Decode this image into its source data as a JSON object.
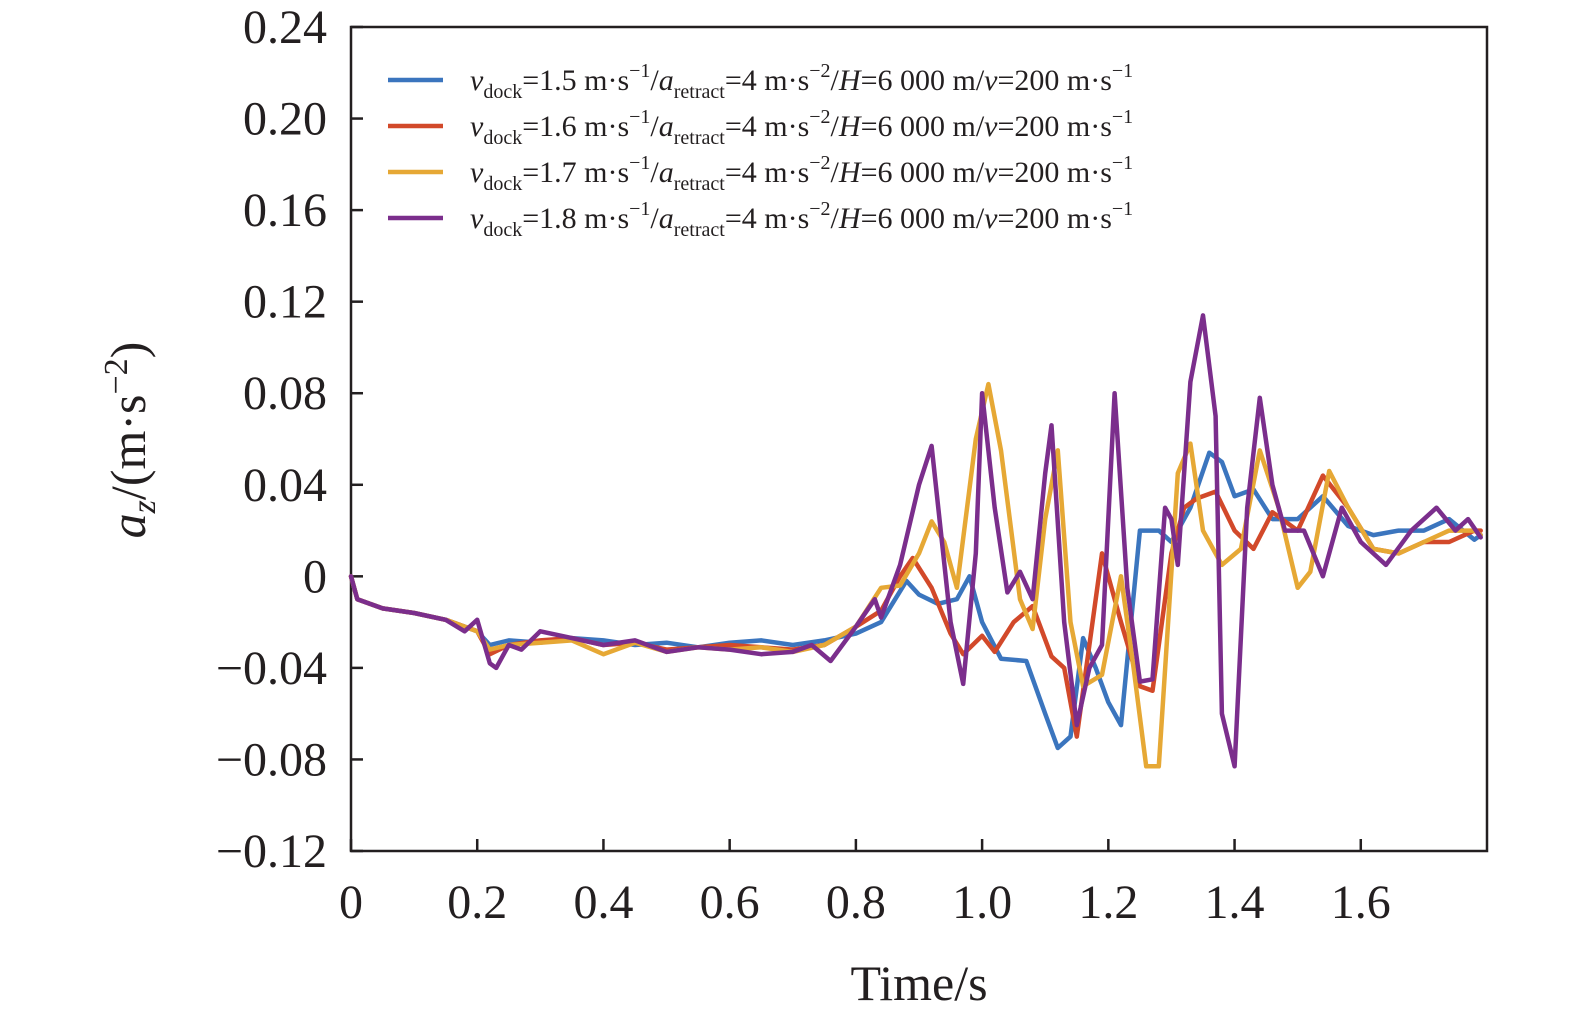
{
  "chart_data": {
    "type": "line",
    "xlabel": "Time/s",
    "ylabel": {
      "var": "a",
      "sub": "z",
      "unit": "/(m·s",
      "sup": "−2",
      "close": ")"
    },
    "xlim": [
      0,
      1.8
    ],
    "ylim": [
      -0.12,
      0.24
    ],
    "xticks": [
      0,
      0.2,
      0.4,
      0.6,
      0.8,
      1.0,
      1.2,
      1.4,
      1.6
    ],
    "xtick_labels": [
      "0",
      "0.2",
      "0.4",
      "0.6",
      "0.8",
      "1.0",
      "1.2",
      "1.4",
      "1.6"
    ],
    "yticks": [
      -0.12,
      -0.08,
      -0.04,
      0,
      0.04,
      0.08,
      0.12,
      0.16,
      0.2,
      0.24
    ],
    "ytick_labels": [
      "−0.12",
      "−0.08",
      "−0.04",
      "0",
      "0.04",
      "0.08",
      "0.12",
      "0.16",
      "0.20",
      "0.24"
    ],
    "grid": false,
    "legend_position": "top-left",
    "series": [
      {
        "name": "vdock=1.5 m·s−1/aretract=4 m·s−2/H=6 000 m/v=200 m·s−1",
        "legend": {
          "vdock": "1.5"
        },
        "color": "#3b75be",
        "x": [
          0,
          0.01,
          0.05,
          0.1,
          0.15,
          0.2,
          0.22,
          0.25,
          0.3,
          0.35,
          0.4,
          0.45,
          0.5,
          0.55,
          0.6,
          0.65,
          0.7,
          0.75,
          0.8,
          0.84,
          0.88,
          0.9,
          0.93,
          0.96,
          0.98,
          1.0,
          1.03,
          1.07,
          1.1,
          1.12,
          1.14,
          1.16,
          1.18,
          1.2,
          1.22,
          1.25,
          1.28,
          1.3,
          1.33,
          1.36,
          1.38,
          1.4,
          1.43,
          1.46,
          1.5,
          1.54,
          1.58,
          1.62,
          1.66,
          1.7,
          1.74,
          1.78,
          1.79
        ],
        "y": [
          0,
          -0.01,
          -0.014,
          -0.016,
          -0.019,
          -0.024,
          -0.03,
          -0.028,
          -0.029,
          -0.027,
          -0.028,
          -0.03,
          -0.029,
          -0.031,
          -0.029,
          -0.028,
          -0.03,
          -0.028,
          -0.025,
          -0.02,
          -0.002,
          -0.008,
          -0.012,
          -0.01,
          0,
          -0.02,
          -0.036,
          -0.037,
          -0.06,
          -0.075,
          -0.07,
          -0.027,
          -0.04,
          -0.055,
          -0.065,
          0.02,
          0.02,
          0.015,
          0.03,
          0.054,
          0.05,
          0.035,
          0.038,
          0.025,
          0.025,
          0.035,
          0.022,
          0.018,
          0.02,
          0.02,
          0.025,
          0.016,
          0.018
        ]
      },
      {
        "name": "vdock=1.6 m·s−1/aretract=4 m·s−2/H=6 000 m/v=200 m·s−1",
        "legend": {
          "vdock": "1.6"
        },
        "color": "#d2492a",
        "x": [
          0,
          0.01,
          0.05,
          0.1,
          0.15,
          0.2,
          0.22,
          0.25,
          0.3,
          0.35,
          0.4,
          0.45,
          0.5,
          0.55,
          0.6,
          0.65,
          0.7,
          0.75,
          0.8,
          0.84,
          0.87,
          0.89,
          0.92,
          0.95,
          0.97,
          1.0,
          1.02,
          1.05,
          1.08,
          1.11,
          1.13,
          1.15,
          1.17,
          1.19,
          1.2,
          1.22,
          1.25,
          1.27,
          1.3,
          1.32,
          1.34,
          1.37,
          1.4,
          1.43,
          1.46,
          1.5,
          1.54,
          1.58,
          1.62,
          1.66,
          1.7,
          1.74,
          1.78,
          1.79
        ],
        "y": [
          0,
          -0.01,
          -0.014,
          -0.016,
          -0.019,
          -0.024,
          -0.034,
          -0.03,
          -0.028,
          -0.027,
          -0.03,
          -0.029,
          -0.032,
          -0.031,
          -0.03,
          -0.031,
          -0.032,
          -0.03,
          -0.022,
          -0.015,
          0,
          0.008,
          -0.005,
          -0.025,
          -0.034,
          -0.026,
          -0.033,
          -0.02,
          -0.013,
          -0.035,
          -0.04,
          -0.07,
          -0.03,
          0.01,
          0.0,
          -0.02,
          -0.048,
          -0.05,
          0.01,
          0.03,
          0.034,
          0.037,
          0.02,
          0.012,
          0.028,
          0.02,
          0.044,
          0.03,
          0.012,
          0.01,
          0.015,
          0.015,
          0.02,
          0.02
        ]
      },
      {
        "name": "vdock=1.7 m·s−1/aretract=4 m·s−2/H=6 000 m/v=200 m·s−1",
        "legend": {
          "vdock": "1.7"
        },
        "color": "#e6a835",
        "x": [
          0,
          0.01,
          0.05,
          0.1,
          0.15,
          0.2,
          0.22,
          0.25,
          0.3,
          0.35,
          0.4,
          0.45,
          0.5,
          0.55,
          0.6,
          0.65,
          0.7,
          0.75,
          0.8,
          0.84,
          0.87,
          0.9,
          0.92,
          0.94,
          0.96,
          0.99,
          1.01,
          1.03,
          1.06,
          1.08,
          1.1,
          1.12,
          1.14,
          1.16,
          1.19,
          1.22,
          1.24,
          1.26,
          1.28,
          1.31,
          1.33,
          1.35,
          1.38,
          1.41,
          1.44,
          1.47,
          1.5,
          1.52,
          1.55,
          1.58,
          1.62,
          1.66,
          1.7,
          1.74,
          1.78,
          1.79
        ],
        "y": [
          0,
          -0.01,
          -0.014,
          -0.016,
          -0.019,
          -0.024,
          -0.032,
          -0.03,
          -0.029,
          -0.028,
          -0.034,
          -0.029,
          -0.033,
          -0.031,
          -0.032,
          -0.031,
          -0.033,
          -0.03,
          -0.022,
          -0.005,
          -0.004,
          0.01,
          0.024,
          0.015,
          -0.005,
          0.06,
          0.084,
          0.055,
          -0.01,
          -0.023,
          0.025,
          0.055,
          -0.02,
          -0.048,
          -0.043,
          0.0,
          -0.04,
          -0.083,
          -0.083,
          0.045,
          0.058,
          0.02,
          0.005,
          0.012,
          0.055,
          0.03,
          -0.005,
          0.002,
          0.046,
          0.03,
          0.012,
          0.01,
          0.015,
          0.02,
          0.02,
          0.018
        ]
      },
      {
        "name": "vdock=1.8 m·s−1/aretract=4 m·s−2/H=6 000 m/v=200 m·s−1",
        "legend": {
          "vdock": "1.8"
        },
        "color": "#7b2e8c",
        "x": [
          0,
          0.01,
          0.05,
          0.1,
          0.15,
          0.18,
          0.2,
          0.22,
          0.23,
          0.25,
          0.27,
          0.3,
          0.35,
          0.4,
          0.45,
          0.5,
          0.55,
          0.6,
          0.65,
          0.7,
          0.73,
          0.76,
          0.8,
          0.83,
          0.84,
          0.87,
          0.9,
          0.92,
          0.95,
          0.97,
          0.99,
          1.0,
          1.02,
          1.04,
          1.06,
          1.08,
          1.1,
          1.11,
          1.13,
          1.15,
          1.17,
          1.19,
          1.21,
          1.23,
          1.25,
          1.27,
          1.29,
          1.3,
          1.31,
          1.33,
          1.35,
          1.37,
          1.38,
          1.4,
          1.42,
          1.44,
          1.46,
          1.48,
          1.51,
          1.54,
          1.57,
          1.6,
          1.64,
          1.68,
          1.72,
          1.75,
          1.77,
          1.79
        ],
        "y": [
          0,
          -0.01,
          -0.014,
          -0.016,
          -0.019,
          -0.024,
          -0.019,
          -0.038,
          -0.04,
          -0.03,
          -0.032,
          -0.024,
          -0.027,
          -0.03,
          -0.028,
          -0.033,
          -0.031,
          -0.032,
          -0.034,
          -0.033,
          -0.03,
          -0.037,
          -0.022,
          -0.01,
          -0.018,
          0.005,
          0.04,
          0.057,
          -0.02,
          -0.047,
          0.01,
          0.08,
          0.03,
          -0.007,
          0.002,
          -0.01,
          0.045,
          0.066,
          -0.02,
          -0.065,
          -0.04,
          -0.03,
          0.08,
          -0.005,
          -0.046,
          -0.045,
          0.03,
          0.025,
          0.005,
          0.085,
          0.114,
          0.07,
          -0.06,
          -0.083,
          0.03,
          0.078,
          0.04,
          0.02,
          0.02,
          0.0,
          0.03,
          0.015,
          0.005,
          0.02,
          0.03,
          0.02,
          0.025,
          0.017
        ]
      }
    ]
  },
  "legend_text": {
    "v": "v",
    "dock_sub": "dock",
    "unit1": " m·s",
    "sup1": "−1",
    "slash_a": "/",
    "a": "a",
    "retract_sub": "retract",
    "eq4": "=4 m·s",
    "sup2": "−2",
    "slash": "/",
    "H": "H",
    "height": "=6 000 m/",
    "v2": "v",
    "speed": "=200 m·s",
    "sup3": "−1"
  }
}
